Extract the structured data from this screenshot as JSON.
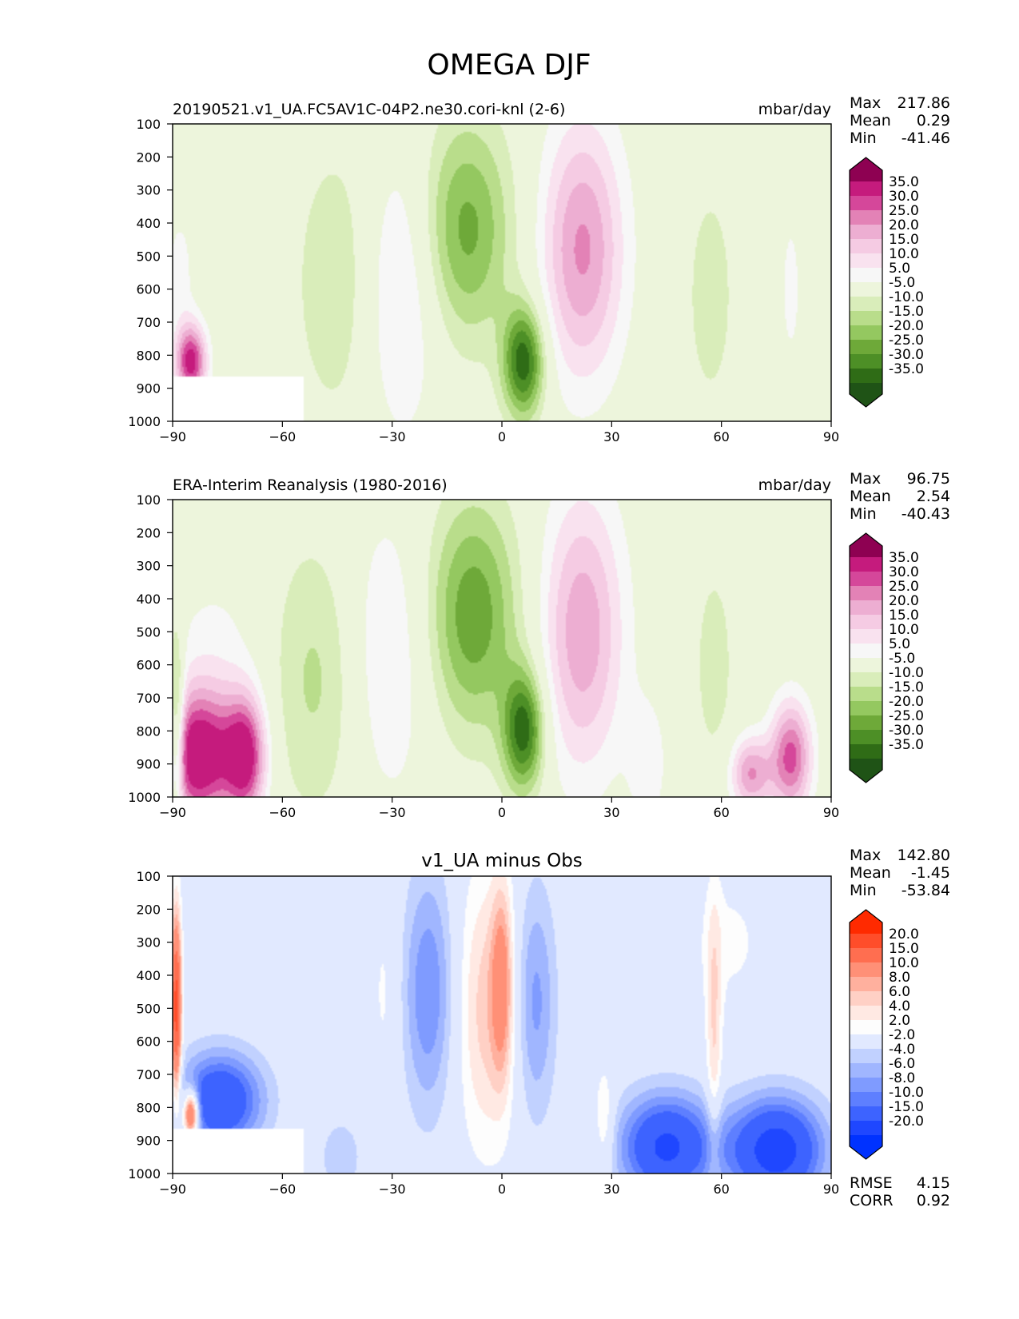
{
  "figure": {
    "title": "OMEGA DJF"
  },
  "chart_data": [
    {
      "type": "heatmap",
      "title": "",
      "left_title": "20190521.v1_UA.FC5AV1C-04P2.ne30.cori-knl (2-6)",
      "units": "mbar/day",
      "xlabel": "",
      "ylabel": "",
      "xlim": [
        -90,
        90
      ],
      "ylim": [
        1000,
        100
      ],
      "x_ticks": [
        -90,
        -60,
        -30,
        0,
        30,
        60,
        90
      ],
      "y_ticks": [
        100,
        200,
        300,
        400,
        500,
        600,
        700,
        800,
        900,
        1000
      ],
      "stats": {
        "max_label": "Max",
        "max": "217.86",
        "mean_label": "Mean",
        "mean": "0.29",
        "min_label": "Min",
        "min": "-41.46"
      },
      "colorbar": {
        "labels": [
          "35.0",
          "30.0",
          "25.0",
          "20.0",
          "15.0",
          "10.0",
          "5.0",
          "-5.0",
          "-10.0",
          "-15.0",
          "-20.0",
          "-25.0",
          "-30.0",
          "-35.0"
        ],
        "colors": [
          "#8e0152",
          "#c51b7d",
          "#d5479a",
          "#e382b6",
          "#edaed2",
          "#f5cbe3",
          "#f9e2ef",
          "#f7f7f7",
          "#edf5dc",
          "#d9edba",
          "#b9dd8b",
          "#94c860",
          "#6ea939",
          "#4d8f26",
          "#2f6c16",
          "#1f5316"
        ],
        "top_color": "#8e0152",
        "bottom_color": "#1f5316"
      },
      "features": [
        {
          "lon": -44,
          "p": 580,
          "sx": 9,
          "sp": 310,
          "v": -10
        },
        {
          "lon": -28,
          "p": 600,
          "sx": 8,
          "sp": 310,
          "v": 14
        },
        {
          "lon": -10,
          "p": 420,
          "sx": 9,
          "sp": 240,
          "v": -22
        },
        {
          "lon": 6,
          "p": 820,
          "sx": 4,
          "sp": 120,
          "v": -34
        },
        {
          "lon": 22,
          "p": 480,
          "sx": 8,
          "sp": 280,
          "v": 26
        },
        {
          "lon": 57,
          "p": 620,
          "sx": 5,
          "sp": 260,
          "v": -8
        },
        {
          "lon": 79,
          "p": 600,
          "sx": 3,
          "sp": 250,
          "v": 6
        },
        {
          "lon": -85,
          "p": 820,
          "sx": 3,
          "sp": 80,
          "v": 38
        },
        {
          "lon": -88,
          "p": 550,
          "sx": 3,
          "sp": 150,
          "v": 7
        }
      ],
      "masks": [
        {
          "lon0": -90,
          "lon1": -54,
          "p0": 865,
          "p1": 1000
        }
      ]
    },
    {
      "type": "heatmap",
      "title": "",
      "left_title": "ERA-Interim Reanalysis (1980-2016)",
      "units": "mbar/day",
      "xlabel": "",
      "ylabel": "",
      "xlim": [
        -90,
        90
      ],
      "ylim": [
        1000,
        100
      ],
      "x_ticks": [
        -90,
        -60,
        -30,
        0,
        30,
        60,
        90
      ],
      "y_ticks": [
        100,
        200,
        300,
        400,
        500,
        600,
        700,
        800,
        900,
        1000
      ],
      "stats": {
        "max_label": "Max",
        "max": "96.75",
        "mean_label": "Mean",
        "mean": "2.54",
        "min_label": "Min",
        "min": "-40.43"
      },
      "colorbar": {
        "labels": [
          "35.0",
          "30.0",
          "25.0",
          "20.0",
          "15.0",
          "10.0",
          "5.0",
          "-5.0",
          "-10.0",
          "-15.0",
          "-20.0",
          "-25.0",
          "-30.0",
          "-35.0"
        ],
        "colors": [
          "#8e0152",
          "#c51b7d",
          "#d5479a",
          "#e382b6",
          "#edaed2",
          "#f5cbe3",
          "#f9e2ef",
          "#f7f7f7",
          "#edf5dc",
          "#d9edba",
          "#b9dd8b",
          "#94c860",
          "#6ea939",
          "#4d8f26",
          "#2f6c16",
          "#1f5316"
        ],
        "top_color": "#8e0152",
        "bottom_color": "#1f5316"
      },
      "features": [
        {
          "lon": -50,
          "p": 640,
          "sx": 10,
          "sp": 300,
          "v": -12
        },
        {
          "lon": -32,
          "p": 580,
          "sx": 9,
          "sp": 320,
          "v": 12
        },
        {
          "lon": -8,
          "p": 450,
          "sx": 9,
          "sp": 250,
          "v": -24
        },
        {
          "lon": 6,
          "p": 800,
          "sx": 4,
          "sp": 130,
          "v": -33
        },
        {
          "lon": 22,
          "p": 500,
          "sx": 8,
          "sp": 300,
          "v": 24
        },
        {
          "lon": 58,
          "p": 600,
          "sx": 4,
          "sp": 230,
          "v": -8
        },
        {
          "lon": -83,
          "p": 880,
          "sx": 7,
          "sp": 140,
          "v": 42
        },
        {
          "lon": -70,
          "p": 880,
          "sx": 4,
          "sp": 130,
          "v": 36
        },
        {
          "lon": -78,
          "p": 600,
          "sx": 10,
          "sp": 220,
          "v": 7
        },
        {
          "lon": 68,
          "p": 930,
          "sx": 4,
          "sp": 80,
          "v": 25
        },
        {
          "lon": 79,
          "p": 880,
          "sx": 4,
          "sp": 120,
          "v": 32
        },
        {
          "lon": 40,
          "p": 900,
          "sx": 4,
          "sp": 150,
          "v": 8
        },
        {
          "lon": -89,
          "p": 800,
          "sx": 1.5,
          "sp": 200,
          "v": -28
        }
      ],
      "masks": []
    },
    {
      "type": "heatmap",
      "title": "v1_UA minus Obs",
      "left_title": "",
      "units": "",
      "xlabel": "",
      "ylabel": "",
      "xlim": [
        -90,
        90
      ],
      "ylim": [
        1000,
        100
      ],
      "x_ticks": [
        -90,
        -60,
        -30,
        0,
        30,
        60,
        90
      ],
      "y_ticks": [
        100,
        200,
        300,
        400,
        500,
        600,
        700,
        800,
        900,
        1000
      ],
      "stats": {
        "max_label": "Max",
        "max": "142.80",
        "mean_label": "Mean",
        "mean": "-1.45",
        "min_label": "Min",
        "min": "-53.84"
      },
      "metrics": {
        "rmse_label": "RMSE",
        "rmse": "4.15",
        "corr_label": "CORR",
        "corr": "0.92"
      },
      "colorbar": {
        "labels": [
          "20.0",
          "15.0",
          "10.0",
          "8.0",
          "6.0",
          "4.0",
          "2.0",
          "-2.0",
          "-4.0",
          "-6.0",
          "-8.0",
          "-10.0",
          "-15.0",
          "-20.0"
        ],
        "colors": [
          "#ff2a00",
          "#ff4d2a",
          "#ff6e50",
          "#ff9077",
          "#ffb09e",
          "#ffd0c5",
          "#ffe9e3",
          "#fdfdfd",
          "#e1e9ff",
          "#c1d1ff",
          "#a0b6ff",
          "#7f9bff",
          "#5e7fff",
          "#3d63ff",
          "#1f47ff",
          "#0032ff"
        ],
        "top_color": "#ff2a00",
        "bottom_color": "#0032ff"
      },
      "features": [
        {
          "lon": -20,
          "p": 450,
          "sx": 5,
          "sp": 260,
          "v": -8
        },
        {
          "lon": -4,
          "p": 500,
          "sx": 6,
          "sp": 300,
          "v": 7
        },
        {
          "lon": 0,
          "p": 420,
          "sx": 2,
          "sp": 200,
          "v": 9
        },
        {
          "lon": 9,
          "p": 480,
          "sx": 4,
          "sp": 250,
          "v": -7
        },
        {
          "lon": -77,
          "p": 780,
          "sx": 8,
          "sp": 100,
          "v": -15
        },
        {
          "lon": 75,
          "p": 930,
          "sx": 9,
          "sp": 110,
          "v": -18
        },
        {
          "lon": 45,
          "p": 920,
          "sx": 9,
          "sp": 110,
          "v": -16
        },
        {
          "lon": -32,
          "p": 450,
          "sx": 3,
          "sp": 250,
          "v": 2.5
        },
        {
          "lon": 62,
          "p": 300,
          "sx": 8,
          "sp": 150,
          "v": 2.5
        },
        {
          "lon": 58,
          "p": 600,
          "sx": 1.5,
          "sp": 300,
          "v": 6
        },
        {
          "lon": -89,
          "p": 500,
          "sx": 1,
          "sp": 200,
          "v": 22
        },
        {
          "lon": -85,
          "p": 820,
          "sx": 1.5,
          "sp": 50,
          "v": 22
        },
        {
          "lon": -44,
          "p": 950,
          "sx": 5,
          "sp": 100,
          "v": -3
        },
        {
          "lon": 28,
          "p": 850,
          "sx": 2,
          "sp": 120,
          "v": 5
        }
      ],
      "masks": [
        {
          "lon0": -90,
          "lon1": -54,
          "p0": 865,
          "p1": 1000
        }
      ]
    }
  ]
}
